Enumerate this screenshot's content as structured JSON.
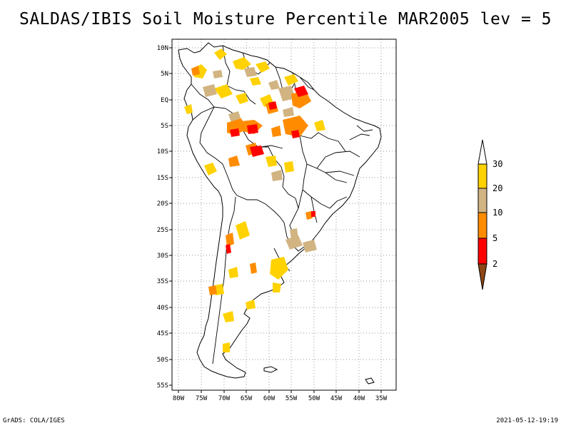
{
  "title": "SALDAS/IBIS Soil Moisture Percentile MAR2005 lev = 5",
  "footer": {
    "left": "GrADS: COLA/IGES",
    "right": "2021-05-12-19:19"
  },
  "axes": {
    "lat_labels": [
      "10N",
      "5N",
      "EQ",
      "5S",
      "10S",
      "15S",
      "20S",
      "25S",
      "30S",
      "35S",
      "40S",
      "45S",
      "50S",
      "55S"
    ],
    "lon_labels": [
      "80W",
      "75W",
      "70W",
      "65W",
      "60W",
      "55W",
      "50W",
      "45W",
      "40W",
      "35W"
    ]
  },
  "colorbar": {
    "labels": [
      "30",
      "20",
      "10",
      "5",
      "2"
    ],
    "colors": {
      "above": "#ffffff",
      "c20_30": "#ffd200",
      "c10_20": "#d2b482",
      "c5_10": "#ff8c00",
      "c2_5": "#ff0000",
      "below": "#8c4614"
    }
  },
  "map": {
    "region": "South America",
    "land_color": "#ffffff",
    "border_color": "#000000",
    "grid_color": "#9a9a9a"
  }
}
